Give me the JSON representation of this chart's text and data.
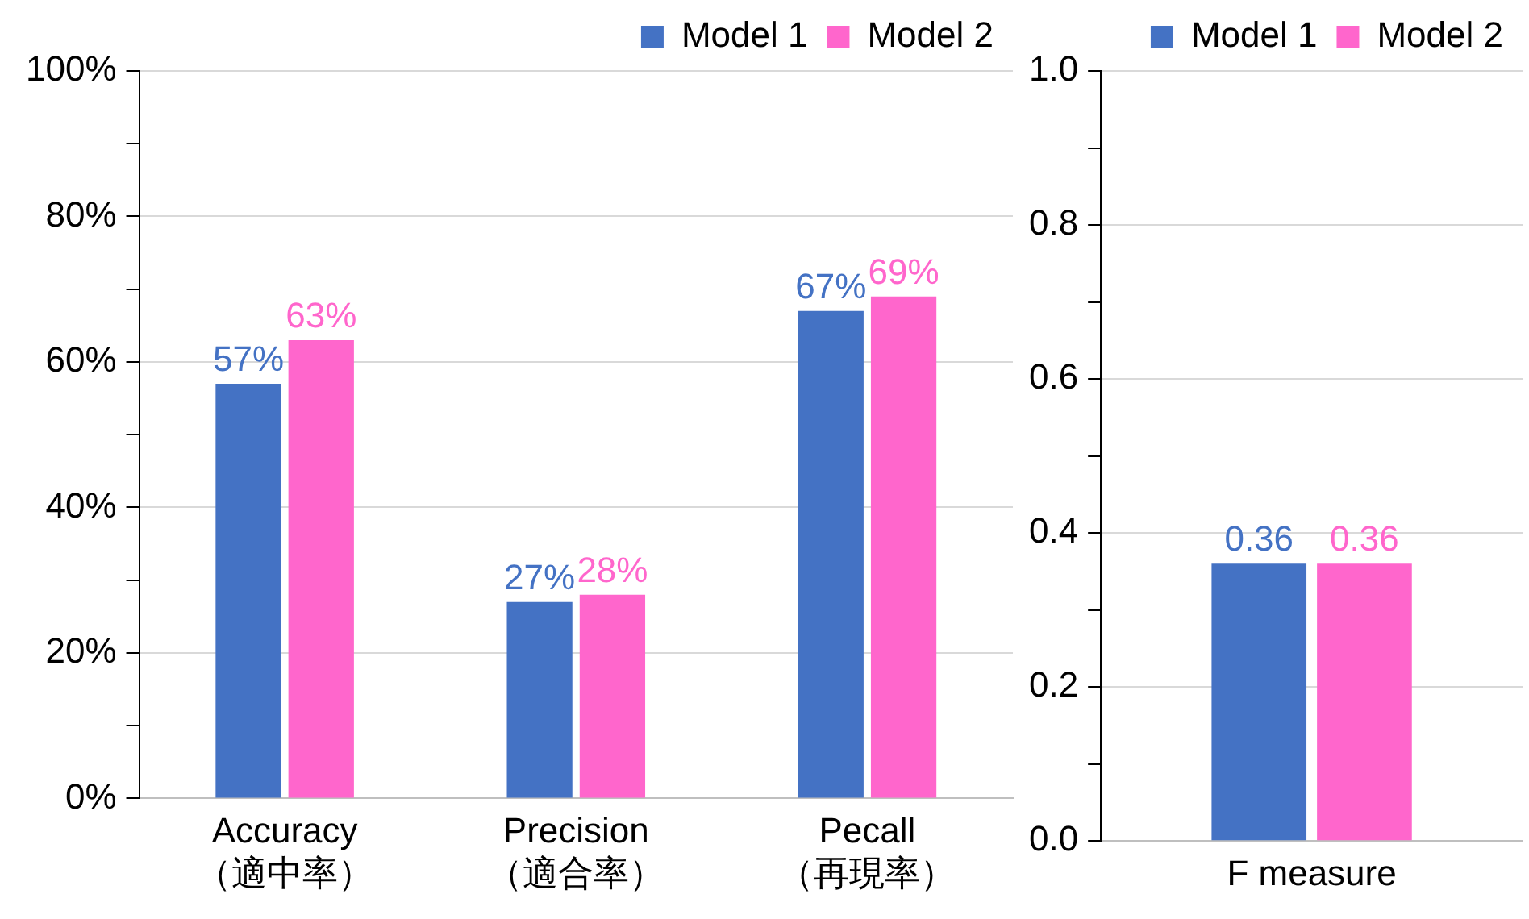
{
  "chart_data": [
    {
      "type": "bar",
      "categories": [
        "Accuracy\n（適中率）",
        "Precision\n（適合率）",
        "Pecall\n（再現率）"
      ],
      "series": [
        {
          "name": "Model 1",
          "color": "#4472c4",
          "values": [
            57,
            27,
            67
          ],
          "value_labels": [
            "57%",
            "27%",
            "67%"
          ]
        },
        {
          "name": "Model 2",
          "color": "#ff66cc",
          "values": [
            63,
            28,
            69
          ],
          "value_labels": [
            "63%",
            "28%",
            "69%"
          ]
        }
      ],
      "ylim": [
        0,
        100
      ],
      "yticks": [
        {
          "value": 0,
          "label": "0%"
        },
        {
          "value": 10,
          "label": null
        },
        {
          "value": 20,
          "label": "20%"
        },
        {
          "value": 30,
          "label": null
        },
        {
          "value": 40,
          "label": "40%"
        },
        {
          "value": 50,
          "label": null
        },
        {
          "value": 60,
          "label": "60%"
        },
        {
          "value": 70,
          "label": null
        },
        {
          "value": 80,
          "label": "80%"
        },
        {
          "value": 90,
          "label": null
        },
        {
          "value": 100,
          "label": "100%"
        }
      ],
      "grid": "y",
      "legend": "top right"
    },
    {
      "type": "bar",
      "categories": [
        "F measure"
      ],
      "series": [
        {
          "name": "Model 1",
          "color": "#4472c4",
          "values": [
            0.36
          ]
        },
        {
          "name": "Model 2",
          "color": "#ff66cc",
          "values": [
            0.36
          ]
        }
      ],
      "ylim": [
        0,
        1
      ],
      "yticks": [
        {
          "value": 0,
          "label": "0.0"
        },
        {
          "value": 0.1,
          "label": null
        },
        {
          "value": 0.2,
          "label": "0.2"
        },
        {
          "value": 0.3,
          "label": null
        },
        {
          "value": 0.4,
          "label": "0.4"
        },
        {
          "value": 0.5,
          "label": null
        },
        {
          "value": 0.6,
          "label": "0.6"
        },
        {
          "value": 0.7,
          "label": null
        },
        {
          "value": 0.8,
          "label": "0.8"
        },
        {
          "value": 0.9,
          "label": null
        },
        {
          "value": 1,
          "label": "1.0"
        }
      ],
      "grid": "y",
      "data_labels": true,
      "legend": "top right"
    }
  ]
}
